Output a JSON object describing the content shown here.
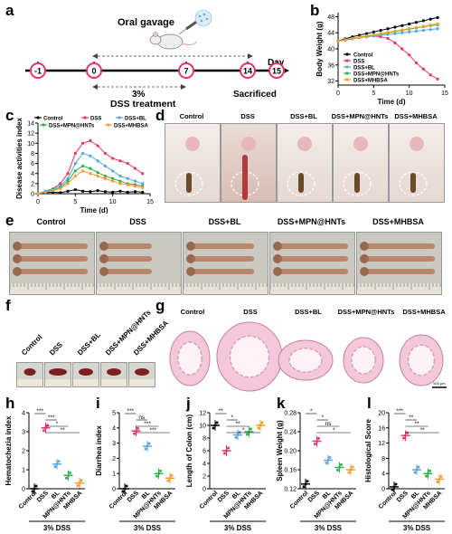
{
  "panel_letters": [
    "a",
    "b",
    "c",
    "d",
    "e",
    "f",
    "g",
    "h",
    "i",
    "j",
    "k",
    "l"
  ],
  "panel_a": {
    "title": "Oral gavage",
    "days": [
      "-1",
      "0",
      "7",
      "14",
      "15"
    ],
    "axis_label": "Day",
    "treatment_pct": "3%",
    "treatment_label": "DSS treatment",
    "end_label": "Sacrificed"
  },
  "group_labels": [
    "Control",
    "DSS",
    "DSS+BL",
    "DSS+MPN@HNTs",
    "DSS+MHBSA"
  ],
  "short_groups": [
    "Control",
    "DSS",
    "BL",
    "MPN@HNTs",
    "MHBSA"
  ],
  "group_colors": {
    "Control": "#000000",
    "DSS": "#e8336b",
    "DSS+BL": "#5aa6d6",
    "DSS+MPN@HNTs": "#2bb34a",
    "DSS+MHBSA": "#f39c2b"
  },
  "footer_label": "3% DSS",
  "scale_bar": "500 μm",
  "chart_data": [
    {
      "id": "b",
      "type": "line",
      "xlabel": "Time (d)",
      "ylabel": "Body Weight (g)",
      "xlim": [
        0,
        15
      ],
      "ylim": [
        31,
        49
      ],
      "xticks": [
        "0",
        "5",
        "10",
        "15"
      ],
      "yticks": [
        "32",
        "36",
        "40",
        "44",
        "48"
      ],
      "legend": "bottom-left",
      "x": [
        0,
        1,
        2,
        3,
        4,
        5,
        6,
        7,
        8,
        9,
        10,
        11,
        12,
        13,
        14
      ],
      "series": [
        {
          "name": "Control",
          "values": [
            42,
            42.5,
            43,
            43.4,
            43.8,
            44.2,
            44.6,
            45,
            45.4,
            45.8,
            46.2,
            46.6,
            47,
            47.4,
            47.8
          ]
        },
        {
          "name": "DSS",
          "values": [
            42,
            42.2,
            42.5,
            42.8,
            43,
            43.2,
            43,
            42.6,
            41.5,
            40,
            38.5,
            36.5,
            35,
            33.5,
            32.5
          ]
        },
        {
          "name": "DSS+BL",
          "values": [
            42,
            42.2,
            42.5,
            42.8,
            43,
            43.2,
            43.4,
            43.6,
            43.8,
            44,
            44.2,
            44.4,
            44.6,
            44.8,
            45
          ]
        },
        {
          "name": "DSS+MPN@HNTs",
          "values": [
            42,
            42.3,
            42.6,
            42.9,
            43.2,
            43.5,
            43.7,
            44,
            44.3,
            44.6,
            44.9,
            45.2,
            45.5,
            45.8,
            46
          ]
        },
        {
          "name": "DSS+MHBSA",
          "values": [
            42,
            42.3,
            42.6,
            42.9,
            43.2,
            43.5,
            43.8,
            44.1,
            44.4,
            44.7,
            45,
            45.3,
            45.6,
            45.9,
            46.2
          ]
        }
      ]
    },
    {
      "id": "c",
      "type": "line",
      "xlabel": "Time (d)",
      "ylabel": "Disease activities index",
      "xlim": [
        0,
        15
      ],
      "ylim": [
        0,
        14
      ],
      "xticks": [
        "0",
        "5",
        "10",
        "15"
      ],
      "yticks": [
        "0",
        "2",
        "4",
        "6",
        "8",
        "10",
        "12",
        "14"
      ],
      "legend": "top",
      "x": [
        0,
        1,
        2,
        3,
        4,
        5,
        6,
        7,
        8,
        9,
        10,
        11,
        12,
        13,
        14
      ],
      "series": [
        {
          "name": "Control",
          "values": [
            0,
            0.2,
            0.3,
            0.2,
            0.5,
            0.8,
            0.5,
            0.4,
            0.6,
            0.4,
            0.3,
            0.5,
            0.3,
            0.4,
            0.3
          ]
        },
        {
          "name": "DSS",
          "values": [
            0,
            0.5,
            1,
            2,
            4,
            8,
            10,
            10.5,
            9.5,
            8,
            7,
            6.5,
            6,
            5,
            4
          ]
        },
        {
          "name": "DSS+BL",
          "values": [
            0,
            0.5,
            1,
            1.5,
            3,
            6,
            8,
            7.5,
            6.5,
            5.5,
            4.5,
            3.5,
            3,
            2.5,
            2
          ]
        },
        {
          "name": "DSS+MPN@HNTs",
          "values": [
            0,
            0.3,
            0.8,
            1.2,
            2.5,
            4.5,
            5.5,
            5,
            4.2,
            3.5,
            3,
            2.5,
            2,
            1.8,
            1.5
          ]
        },
        {
          "name": "DSS+MHBSA",
          "values": [
            0,
            0.3,
            0.6,
            1,
            2,
            3.5,
            4.5,
            4,
            3.5,
            3,
            2.5,
            2,
            1.8,
            1.5,
            1.2
          ]
        }
      ]
    },
    {
      "id": "h",
      "type": "scatter",
      "ylabel": "Hematochezia index",
      "ylim": [
        0,
        4
      ],
      "yticks": [
        "0",
        "1",
        "2",
        "3",
        "4"
      ],
      "categories": [
        "Control",
        "DSS",
        "BL",
        "MPN@HNTs",
        "MHBSA"
      ],
      "values": [
        0,
        3.2,
        1.3,
        0.7,
        0.3
      ],
      "sig": [
        "***",
        "***",
        "*",
        "**"
      ]
    },
    {
      "id": "i",
      "type": "scatter",
      "ylabel": "Diarrhea index",
      "ylim": [
        0,
        5
      ],
      "yticks": [
        "0",
        "1",
        "2",
        "3",
        "4",
        "5"
      ],
      "categories": [
        "Control",
        "DSS",
        "BL",
        "MPN@HNTs",
        "MHBSA"
      ],
      "values": [
        0,
        3.8,
        2.8,
        1.0,
        0.7
      ],
      "sig": [
        "***",
        "ns",
        "***",
        "***"
      ]
    },
    {
      "id": "j",
      "type": "scatter",
      "ylabel": "Length of Colon (cm)",
      "ylim": [
        0,
        12
      ],
      "yticks": [
        "0",
        "2",
        "4",
        "6",
        "8",
        "10",
        "12"
      ],
      "categories": [
        "Control",
        "DSS",
        "BL",
        "MPN@HNTs",
        "MHBSA"
      ],
      "values": [
        10,
        6,
        8.5,
        9,
        10
      ],
      "sig": [
        "**",
        "*",
        "**",
        "*"
      ]
    },
    {
      "id": "k",
      "type": "scatter",
      "ylabel": "Spleen Weight (g)",
      "ylim": [
        0.12,
        0.28
      ],
      "yticks": [
        "0.12",
        "0.16",
        "0.20",
        "0.24",
        "0.28"
      ],
      "categories": [
        "Control",
        "DSS",
        "BL",
        "MPN@HNTs",
        "MHBSA"
      ],
      "values": [
        0.13,
        0.22,
        0.18,
        0.165,
        0.16
      ],
      "sig": [
        "*",
        "*",
        "ns",
        "*"
      ]
    },
    {
      "id": "l",
      "type": "scatter",
      "ylabel": "Histological Score",
      "ylim": [
        0,
        20
      ],
      "yticks": [
        "0",
        "4",
        "8",
        "12",
        "16",
        "20"
      ],
      "categories": [
        "Control",
        "DSS",
        "BL",
        "MPN@HNTs",
        "MHBSA"
      ],
      "values": [
        0.5,
        14,
        5,
        4,
        2.5
      ],
      "sig": [
        "***",
        "**",
        "**",
        "**"
      ]
    }
  ]
}
